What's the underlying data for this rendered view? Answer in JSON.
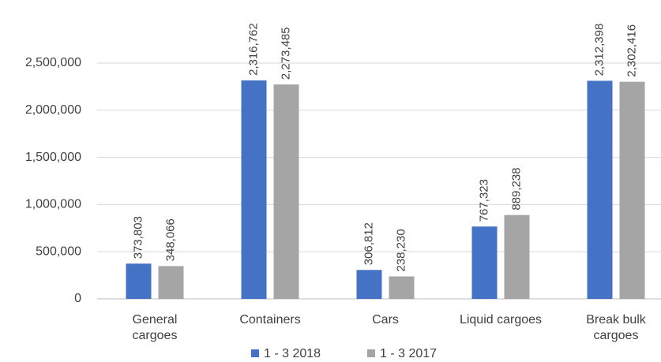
{
  "chart_data": {
    "type": "bar",
    "categories": [
      "General cargoes",
      "Containers",
      "Cars",
      "Liquid cargoes",
      "Break bulk cargoes"
    ],
    "series": [
      {
        "name": "1 - 3 2018",
        "color": "#4472c4",
        "values": [
          373803,
          2316762,
          306812,
          767323,
          2312398
        ],
        "value_labels": [
          "373,803",
          "2,316,762",
          "306,812",
          "767,323",
          "2,312,398"
        ]
      },
      {
        "name": "1 - 3 2017",
        "color": "#a5a5a5",
        "values": [
          348066,
          2273485,
          238230,
          889238,
          2302416
        ],
        "value_labels": [
          "348,066",
          "2,273,485",
          "238,230",
          "889,238",
          "2,302,416"
        ]
      }
    ],
    "ylim": [
      0,
      2500000
    ],
    "yticks": [
      0,
      {
        "value": 500000,
        "label": "500,000"
      },
      {
        "value": 1000000,
        "label": "1,000,000"
      },
      {
        "value": 1500000,
        "label": "1,500,000"
      },
      {
        "value": 2000000,
        "label": "2,000,000"
      },
      {
        "value": 2500000,
        "label": "2,500,000"
      }
    ],
    "grid": true,
    "legend": "bottom"
  }
}
